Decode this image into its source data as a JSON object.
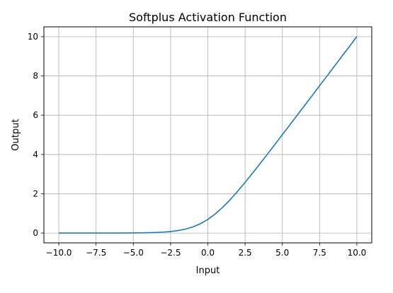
{
  "chart_data": {
    "type": "line",
    "title": "Softplus Activation Function",
    "xlabel": "Input",
    "ylabel": "Output",
    "xlim": [
      -11.0,
      11.0
    ],
    "ylim": [
      -0.5,
      10.5
    ],
    "x_ticks": [
      -10.0,
      -7.5,
      -5.0,
      -2.5,
      0.0,
      2.5,
      5.0,
      7.5,
      10.0
    ],
    "x_tick_labels": [
      "−10.0",
      "−7.5",
      "−5.0",
      "−2.5",
      "0.0",
      "2.5",
      "5.0",
      "7.5",
      "10.0"
    ],
    "y_ticks": [
      0,
      2,
      4,
      6,
      8,
      10
    ],
    "y_tick_labels": [
      "0",
      "2",
      "4",
      "6",
      "8",
      "10"
    ],
    "grid": true,
    "legend": "none",
    "series": [
      {
        "color": "#1f77b4",
        "x": [
          -10,
          -9,
          -8,
          -7,
          -6,
          -5,
          -4,
          -3.5,
          -3,
          -2.5,
          -2,
          -1.5,
          -1,
          -0.5,
          0,
          0.5,
          1,
          1.5,
          2,
          2.5,
          3,
          3.5,
          4,
          4.5,
          5,
          6,
          7,
          8,
          9,
          10
        ],
        "y": [
          4.54e-05,
          0.000123,
          0.000335,
          0.000911,
          0.00248,
          0.00672,
          0.0181,
          0.0298,
          0.0486,
          0.0789,
          0.127,
          0.201,
          0.313,
          0.474,
          0.693,
          0.974,
          1.313,
          1.701,
          2.127,
          2.579,
          3.049,
          3.53,
          4.018,
          4.511,
          5.007,
          6.002,
          7.001,
          8.0,
          9.0,
          10.0
        ]
      }
    ]
  }
}
